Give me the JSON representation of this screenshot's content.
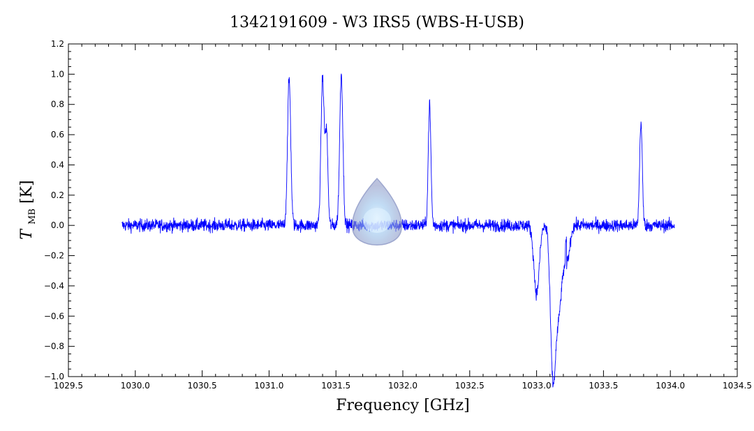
{
  "chart_data": {
    "type": "line",
    "title": "1342191609 - W3 IRS5 (WBS-H-USB)",
    "xlabel": "Frequency [GHz]",
    "ylabel_main": "T",
    "ylabel_sub": "MB",
    "ylabel_unit": "[K]",
    "xlim": [
      1029.5,
      1034.5
    ],
    "ylim": [
      -1.0,
      1.2
    ],
    "x_ticks": [
      1029.5,
      1030.0,
      1030.5,
      1031.0,
      1031.5,
      1032.0,
      1032.5,
      1033.0,
      1033.5,
      1034.0,
      1034.5
    ],
    "x_tick_labels": [
      "1029.5",
      "1030.0",
      "1030.5",
      "1031.0",
      "1031.5",
      "1032.0",
      "1032.5",
      "1033.0",
      "1033.5",
      "1034.0",
      "1034.5"
    ],
    "y_ticks": [
      -1.0,
      -0.8,
      -0.6,
      -0.4,
      -0.2,
      0.0,
      0.2,
      0.4,
      0.6,
      0.8,
      1.0,
      1.2
    ],
    "y_tick_labels": [
      "−1.0",
      "−0.8",
      "−0.6",
      "−0.4",
      "−0.2",
      "0.0",
      "0.2",
      "0.4",
      "0.6",
      "0.8",
      "1.0",
      "1.2"
    ],
    "grid": false,
    "series": [
      {
        "color": "#0000ff",
        "x_range": [
          1029.9,
          1034.03
        ],
        "noise_rms": 0.03,
        "emission_lines": [
          {
            "center": 1031.15,
            "peak": 0.97,
            "width": 0.012
          },
          {
            "center": 1031.4,
            "peak": 0.97,
            "width": 0.012
          },
          {
            "center": 1031.43,
            "peak": 0.6,
            "width": 0.01
          },
          {
            "center": 1031.54,
            "peak": 1.0,
            "width": 0.012
          },
          {
            "center": 1032.2,
            "peak": 0.8,
            "width": 0.01
          },
          {
            "center": 1033.78,
            "peak": 0.68,
            "width": 0.01
          }
        ],
        "absorption_lines": [
          {
            "center": 1033.0,
            "depth": -0.45,
            "width": 0.02
          },
          {
            "center": 1033.12,
            "depth": -0.78,
            "width": 0.018
          },
          {
            "center": 1033.16,
            "depth": -0.6,
            "width": 0.03
          },
          {
            "center": 1033.23,
            "depth": -0.2,
            "width": 0.02
          }
        ],
        "spikes": [
          {
            "x": 1033.08,
            "y": 0.04
          },
          {
            "x": 1033.22,
            "y": 0.14
          }
        ]
      }
    ]
  },
  "watermark": {
    "icon": "water-drop-icon"
  }
}
